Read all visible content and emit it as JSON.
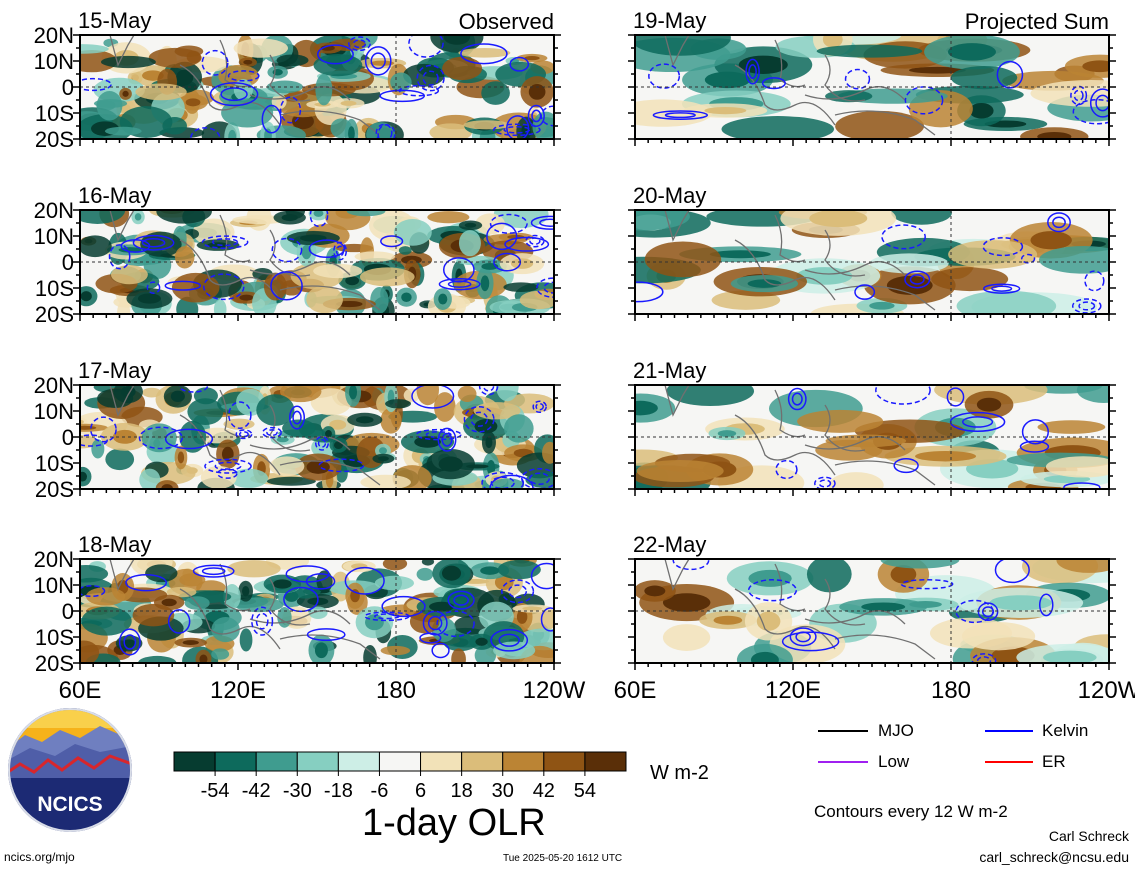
{
  "chart_data": {
    "type": "heatmap",
    "description_variable": "1-day OLR",
    "units": "W m-2",
    "columns": [
      {
        "title": "Observed",
        "dates": [
          "15-May",
          "16-May",
          "17-May",
          "18-May"
        ]
      },
      {
        "title": "Projected Sum",
        "dates": [
          "19-May",
          "20-May",
          "21-May",
          "22-May"
        ]
      }
    ],
    "x_ticks": [
      "60E",
      "120E",
      "180",
      "120W"
    ],
    "y_ticks": [
      "20N",
      "10N",
      "0",
      "10S",
      "20S"
    ],
    "colorbar": {
      "labels": [
        "-54",
        "-42",
        "-30",
        "-18",
        "-6",
        "6",
        "18",
        "30",
        "42",
        "54"
      ],
      "colors": [
        "#063c30",
        "#0d6a5c",
        "#3f9c8f",
        "#86cfc1",
        "#cdeee6",
        "#f6f6f4",
        "#f2e2b8",
        "#dbbd7a",
        "#bb8434",
        "#8f5414",
        "#5a2f08"
      ]
    },
    "contour_note": "Contours every 12 W m-2",
    "contour_legend": [
      {
        "label": "MJO",
        "color": "#000000"
      },
      {
        "label": "Kelvin",
        "color": "#0000ff"
      },
      {
        "label": "Low",
        "color": "#a020f0"
      },
      {
        "label": "ER",
        "color": "#ff0000"
      }
    ]
  },
  "footer": {
    "left": "ncics.org/mjo",
    "center": "Tue 2025-05-20 1612 UTC",
    "author": "Carl Schreck",
    "email": "carl_schreck@ncsu.edu"
  },
  "logo": {
    "text": "NCICS"
  }
}
